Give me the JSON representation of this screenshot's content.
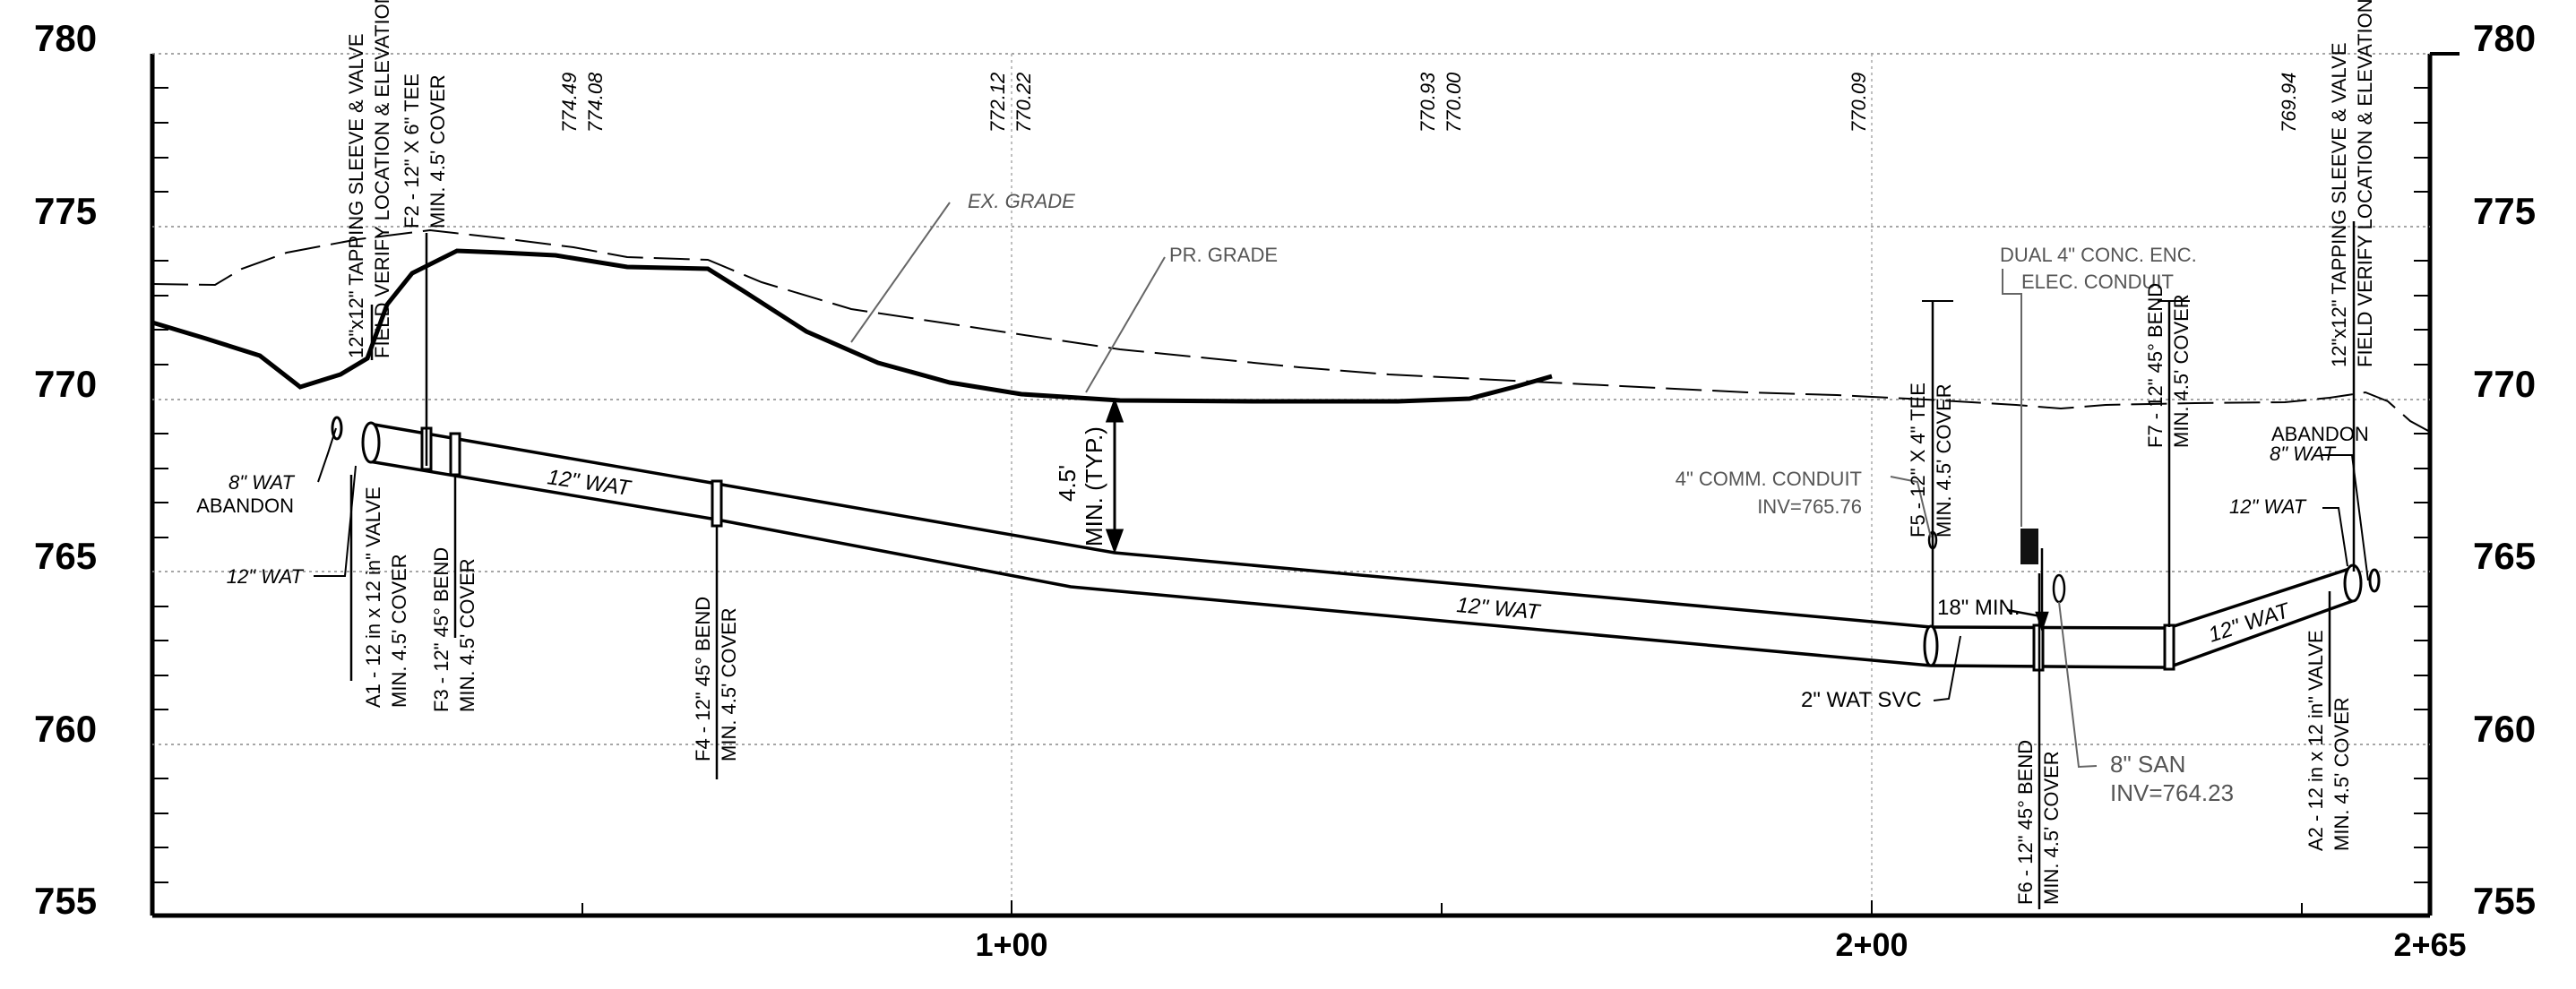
{
  "axis": {
    "elevations": [
      "780",
      "775",
      "770",
      "765",
      "760",
      "755"
    ],
    "stations": [
      "1+00",
      "2+00",
      "2+65"
    ]
  },
  "grade_top_labels": [
    [
      "774.49",
      "774.08"
    ],
    [
      "772.12",
      "770.22"
    ],
    [
      "770.93",
      "770.00"
    ],
    [
      "770.09"
    ],
    [
      "769.94"
    ]
  ],
  "callouts": {
    "ex_grade": "EX. GRADE",
    "pr_grade": "PR. GRADE",
    "min_cover": [
      "4.5'",
      "MIN. (TYP.)"
    ],
    "wat_12_a": "12\" WAT",
    "wat_12_b": "12\" WAT",
    "wat_12_c": "12\" WAT",
    "wat_svc": "2\" WAT SVC",
    "min_18": "18\" MIN.",
    "comm_conduit": [
      "4\" COMM. CONDUIT",
      "INV=765.76"
    ],
    "elec_conduit": [
      "DUAL 4\" CONC. ENC.",
      "ELEC. CONDUIT"
    ],
    "san": [
      "8\" SAN",
      "INV=764.23"
    ],
    "abandon_left": [
      "8\" WAT",
      "ABANDON"
    ],
    "wat_left": "12\" WAT",
    "abandon_right": [
      "ABANDON",
      "8\" WAT"
    ],
    "wat_right": "12\" WAT"
  },
  "fittings": {
    "tap_left": [
      "12\"x12\" TAPPING SLEEVE & VALVE",
      "FIELD VERIFY LOCATION & ELEVATION"
    ],
    "f2": [
      "F2 - 12\" X 6\" TEE",
      "MIN. 4.5' COVER"
    ],
    "a1": [
      "A1 - 12 in x 12 in\" VALVE",
      "MIN. 4.5' COVER"
    ],
    "f3": [
      "F3 - 12\" 45° BEND",
      "MIN. 4.5' COVER"
    ],
    "f4": [
      "F4 - 12\" 45° BEND",
      "MIN. 4.5' COVER"
    ],
    "f5": [
      "F5 - 12\" X 4\" TEE",
      "MIN. 4.5' COVER"
    ],
    "f6": [
      "F6 - 12\" 45° BEND",
      "MIN. 4.5' COVER"
    ],
    "f7": [
      "F7 - 12\" 45° BEND",
      "MIN. 4.5' COVER"
    ],
    "a2": [
      "A2 - 12 in x 12 in\" VALVE",
      "MIN. 4.5' COVER"
    ],
    "tap_right": [
      "12\"x12\" TAPPING SLEEVE & VALVE",
      "FIELD VERIFY LOCATION & ELEVATION"
    ]
  }
}
